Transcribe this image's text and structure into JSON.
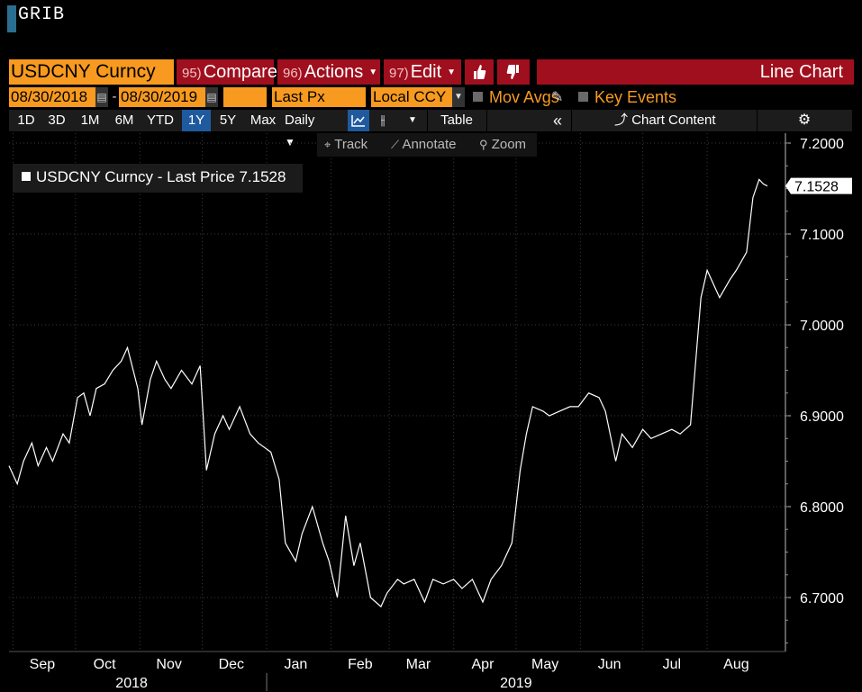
{
  "command": {
    "text": "GRIB"
  },
  "toolbar": {
    "security": "USDCNY Curncy",
    "compare": {
      "num": "95)",
      "label": "Compare"
    },
    "actions": {
      "num": "96)",
      "label": "Actions"
    },
    "edit": {
      "num": "97)",
      "label": "Edit"
    },
    "chart_type": "Line Chart"
  },
  "range": {
    "start": "08/30/2018",
    "separator": "-",
    "end": "08/30/2019",
    "blank": "",
    "field": "Last Px",
    "currency": "Local CCY",
    "mov_avgs": "Mov Avgs",
    "key_events": "Key Events"
  },
  "periods": [
    "1D",
    "3D",
    "1M",
    "6M",
    "YTD",
    "1Y",
    "5Y",
    "Max"
  ],
  "selected_period": "1Y",
  "frequency": "Daily",
  "table_label": "Table",
  "chart_content_label": "Chart Content",
  "tools": {
    "track": "Track",
    "annotate": "Annotate",
    "zoom": "Zoom"
  },
  "legend": {
    "text": "USDCNY Curncy - Last Price 7.1528"
  },
  "colors": {
    "orange": "#f79a1f",
    "red": "#a00f1e",
    "blue": "#1f5a9e",
    "line": "#ffffff"
  },
  "chart_data": {
    "type": "line",
    "title": "",
    "xlabel": "",
    "ylabel": "",
    "ylim": [
      6.64,
      7.22
    ],
    "y_ticks": [
      "7.2000",
      "7.1000",
      "7.0000",
      "6.9000",
      "6.8000",
      "6.7000"
    ],
    "last_price_label": "7.1528",
    "last_price": 7.1528,
    "month_labels": [
      "Sep",
      "Oct",
      "Nov",
      "Dec",
      "Jan",
      "Feb",
      "Mar",
      "Apr",
      "May",
      "Jun",
      "Jul",
      "Aug"
    ],
    "year_labels": [
      "2018",
      "2019"
    ],
    "series": [
      {
        "name": "USDCNY Curncy - Last Price",
        "x": [
          "2018-08-30",
          "2018-09-03",
          "2018-09-06",
          "2018-09-10",
          "2018-09-13",
          "2018-09-17",
          "2018-09-20",
          "2018-09-25",
          "2018-09-28",
          "2018-10-02",
          "2018-10-05",
          "2018-10-08",
          "2018-10-11",
          "2018-10-15",
          "2018-10-19",
          "2018-10-23",
          "2018-10-26",
          "2018-10-31",
          "2018-11-02",
          "2018-11-06",
          "2018-11-09",
          "2018-11-13",
          "2018-11-16",
          "2018-11-21",
          "2018-11-26",
          "2018-11-30",
          "2018-12-03",
          "2018-12-07",
          "2018-12-11",
          "2018-12-14",
          "2018-12-19",
          "2018-12-24",
          "2018-12-28",
          "2019-01-03",
          "2019-01-07",
          "2019-01-10",
          "2019-01-15",
          "2019-01-18",
          "2019-01-23",
          "2019-01-28",
          "2019-01-31",
          "2019-02-04",
          "2019-02-08",
          "2019-02-12",
          "2019-02-15",
          "2019-02-20",
          "2019-02-25",
          "2019-02-28",
          "2019-03-05",
          "2019-03-08",
          "2019-03-13",
          "2019-03-18",
          "2019-03-22",
          "2019-03-27",
          "2019-04-01",
          "2019-04-05",
          "2019-04-10",
          "2019-04-15",
          "2019-04-19",
          "2019-04-24",
          "2019-04-29",
          "2019-05-03",
          "2019-05-06",
          "2019-05-09",
          "2019-05-14",
          "2019-05-17",
          "2019-05-22",
          "2019-05-27",
          "2019-05-31",
          "2019-06-05",
          "2019-06-10",
          "2019-06-13",
          "2019-06-18",
          "2019-06-21",
          "2019-06-26",
          "2019-07-01",
          "2019-07-05",
          "2019-07-10",
          "2019-07-15",
          "2019-07-19",
          "2019-07-24",
          "2019-07-29",
          "2019-08-01",
          "2019-08-05",
          "2019-08-07",
          "2019-08-12",
          "2019-08-15",
          "2019-08-20",
          "2019-08-23",
          "2019-08-26",
          "2019-08-28",
          "2019-08-30"
        ],
        "values": [
          6.845,
          6.825,
          6.85,
          6.87,
          6.845,
          6.865,
          6.85,
          6.88,
          6.87,
          6.92,
          6.925,
          6.9,
          6.93,
          6.935,
          6.95,
          6.96,
          6.975,
          6.93,
          6.89,
          6.94,
          6.96,
          6.94,
          6.93,
          6.95,
          6.935,
          6.955,
          6.84,
          6.88,
          6.9,
          6.885,
          6.91,
          6.88,
          6.87,
          6.86,
          6.83,
          6.76,
          6.74,
          6.77,
          6.8,
          6.76,
          6.74,
          6.7,
          6.79,
          6.735,
          6.76,
          6.7,
          6.69,
          6.705,
          6.72,
          6.715,
          6.72,
          6.695,
          6.72,
          6.715,
          6.72,
          6.71,
          6.72,
          6.695,
          6.72,
          6.735,
          6.76,
          6.84,
          6.88,
          6.91,
          6.905,
          6.9,
          6.905,
          6.91,
          6.91,
          6.925,
          6.92,
          6.905,
          6.85,
          6.88,
          6.865,
          6.885,
          6.875,
          6.88,
          6.885,
          6.88,
          6.89,
          7.03,
          7.06,
          7.04,
          7.03,
          7.05,
          7.06,
          7.08,
          7.14,
          7.16,
          7.155,
          7.1528
        ]
      }
    ]
  }
}
